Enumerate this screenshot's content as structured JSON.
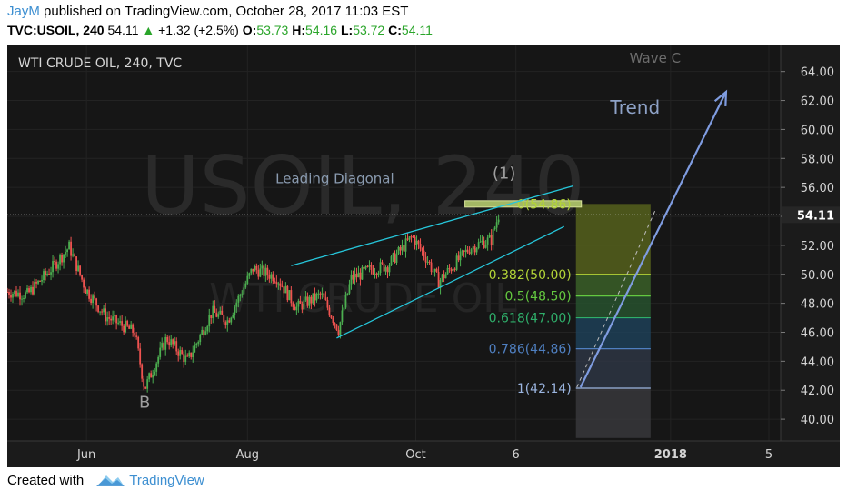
{
  "header": {
    "author": "JayM",
    "published_text": "published on TradingView.com, October 28, 2017 11:03 EST",
    "symbol": "TVC:USOIL, 240",
    "last": "54.11",
    "change": "+1.32 (+2.5%)",
    "o_label": "O:",
    "o_value": "53.73",
    "h_label": "H:",
    "h_value": "54.16",
    "l_label": "L:",
    "l_value": "53.72",
    "c_label": "C:",
    "c_value": "54.11"
  },
  "footer": {
    "created_with": "Created with",
    "brand": "TradingView"
  },
  "colors": {
    "background": "#161616",
    "axis_text": "#d4d4d4",
    "up_candle": "#4caf50",
    "down_candle": "#ef5350",
    "channel": "#26c6da",
    "trend_arrow": "#7f9ce0",
    "fib_1": "#9bb5e0",
    "fib_0786": "#4f7fc0",
    "fib_0618": "#2fae6a",
    "fib_05": "#64c940",
    "fib_0382": "#b3d437"
  },
  "chart_data": {
    "type": "candlestick",
    "title": "WTI CRUDE OIL, 240, TVC",
    "watermark": "USOIL, 240",
    "watermark_sub": "WTI CRUDE OIL",
    "price_ticks": [
      "40.00",
      "42.00",
      "44.00",
      "46.00",
      "48.00",
      "50.00",
      "52.00",
      "54.00",
      "56.00",
      "58.00",
      "60.00",
      "62.00",
      "64.00"
    ],
    "ylim": [
      38.5,
      65.8
    ],
    "x_ticks": [
      {
        "label": "Jun",
        "idx": 87
      },
      {
        "label": "Aug",
        "idx": 264
      },
      {
        "label": "Oct",
        "idx": 449
      },
      {
        "label": "6",
        "idx": 559
      },
      {
        "label": "2018",
        "idx": 729
      },
      {
        "label": "5",
        "idx": 837
      }
    ],
    "xlim": [
      0,
      850
    ],
    "last_price": "54.11",
    "last_price_value": 54.11,
    "path_points": [
      [
        0,
        48.8
      ],
      [
        22,
        48.6
      ],
      [
        50,
        50.5
      ],
      [
        68,
        51.9
      ],
      [
        86,
        49.0
      ],
      [
        108,
        47.1
      ],
      [
        140,
        46.0
      ],
      [
        151,
        42.1
      ],
      [
        175,
        45.6
      ],
      [
        198,
        44.0
      ],
      [
        225,
        47.4
      ],
      [
        242,
        46.8
      ],
      [
        270,
        50.4
      ],
      [
        296,
        49.8
      ],
      [
        318,
        47.7
      ],
      [
        345,
        48.6
      ],
      [
        364,
        46.2
      ],
      [
        378,
        49.7
      ],
      [
        398,
        50.3
      ],
      [
        418,
        50.6
      ],
      [
        445,
        52.6
      ],
      [
        460,
        51.2
      ],
      [
        474,
        49.5
      ],
      [
        490,
        50.6
      ],
      [
        508,
        51.8
      ],
      [
        522,
        52.2
      ],
      [
        532,
        52.4
      ],
      [
        540,
        54.1
      ]
    ],
    "labels": [
      {
        "text": "B",
        "idx": 151,
        "price": 40.8
      },
      {
        "text": "Leading Diagonal",
        "idx": 360,
        "price": 56.3
      },
      {
        "text": "(1)",
        "idx": 546,
        "price": 56.6
      },
      {
        "text": "Trend",
        "idx": 690,
        "price": 61.1
      },
      {
        "text": "Wave C",
        "idx": 712,
        "price": 64.6
      }
    ],
    "fib_levels": [
      {
        "label": "0(54.86)",
        "price": 54.86
      },
      {
        "label": "0.382(50.00)",
        "price": 50.0
      },
      {
        "label": "0.5(48.50)",
        "price": 48.5
      },
      {
        "label": "0.618(47.00)",
        "price": 47.0
      },
      {
        "label": "0.786(44.86)",
        "price": 44.86
      },
      {
        "label": "1(42.14)",
        "price": 42.14
      }
    ],
    "fib_range": [
      625,
      707
    ],
    "channel_upper": [
      [
        312,
        50.6
      ],
      [
        622,
        56.1
      ]
    ],
    "channel_lower": [
      [
        362,
        45.6
      ],
      [
        612,
        53.3
      ]
    ],
    "trend_arrow": [
      [
        630,
        42.2
      ],
      [
        790,
        62.6
      ]
    ],
    "trend_dashed": [
      [
        626,
        42.2
      ],
      [
        712,
        54.4
      ]
    ]
  }
}
